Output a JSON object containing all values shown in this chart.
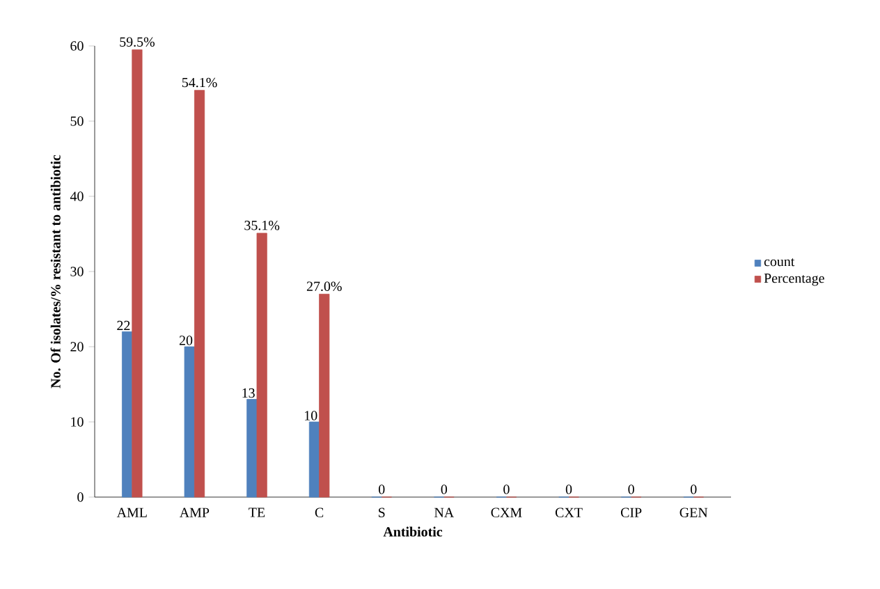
{
  "chart_data": {
    "type": "bar",
    "xlabel": "Antibiotic",
    "ylabel": "No. Of isolates/% resistant to antibiotic",
    "categories": [
      "AML",
      "AMP",
      "TE",
      "C",
      "S",
      "NA",
      "CXM",
      "CXT",
      "CIP",
      "GEN"
    ],
    "series": [
      {
        "name": "count",
        "color": "#4f81bd",
        "values": [
          22,
          20,
          13,
          10,
          0,
          0,
          0,
          0,
          0,
          0
        ],
        "value_labels": [
          "22",
          "20",
          "13",
          "10",
          null,
          null,
          null,
          null,
          null,
          null
        ]
      },
      {
        "name": "Percentage",
        "color": "#c0504d",
        "values": [
          59.5,
          54.1,
          35.1,
          27.0,
          0,
          0,
          0,
          0,
          0,
          0
        ],
        "value_labels": [
          "59.5%",
          "54.1%",
          "35.1%",
          "27.0%",
          "0",
          "0",
          "0",
          "0",
          "0",
          "0"
        ]
      }
    ],
    "ylim": [
      0,
      60
    ],
    "yticks": [
      0,
      10,
      20,
      30,
      40,
      50,
      60
    ],
    "legend": "right"
  }
}
